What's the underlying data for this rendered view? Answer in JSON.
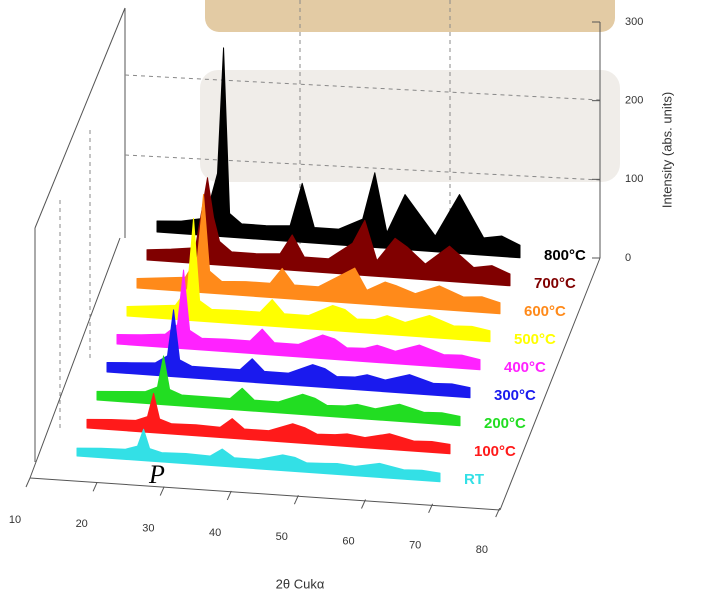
{
  "chart_data": {
    "type": "waterfall",
    "x_label": "2θ Cukα",
    "z_label": "Intensity (abs. units)",
    "annotation": "P",
    "x": [
      20,
      24,
      28,
      30,
      31,
      32,
      34,
      38,
      42,
      44,
      46,
      50,
      54,
      56,
      58,
      61,
      63,
      66,
      70,
      74,
      77,
      80
    ],
    "xticks": [
      10,
      20,
      30,
      40,
      50,
      60,
      70,
      80
    ],
    "zlim": [
      0,
      300
    ],
    "zticks": [
      0,
      100,
      200,
      300
    ],
    "series": [
      {
        "name": "RT",
        "color": "#33e0e6",
        "values": [
          10,
          12,
          13,
          18,
          40,
          16,
          12,
          13,
          12,
          22,
          12,
          12,
          20,
          18,
          12,
          13,
          14,
          12,
          18,
          12,
          13,
          11
        ]
      },
      {
        "name": "100°C",
        "color": "#ff1a1a",
        "values": [
          11,
          13,
          14,
          20,
          50,
          18,
          13,
          14,
          13,
          25,
          13,
          13,
          24,
          20,
          13,
          14,
          16,
          13,
          20,
          13,
          14,
          12
        ]
      },
      {
        "name": "200°C",
        "color": "#22dd22",
        "values": [
          11,
          13,
          15,
          22,
          62,
          20,
          14,
          14,
          14,
          28,
          14,
          14,
          26,
          22,
          14,
          15,
          18,
          14,
          22,
          14,
          15,
          12
        ]
      },
      {
        "name": "300°C",
        "color": "#1a1aee",
        "values": [
          12,
          14,
          16,
          26,
          85,
          22,
          15,
          15,
          15,
          30,
          15,
          15,
          28,
          24,
          15,
          16,
          20,
          15,
          24,
          15,
          16,
          13
        ]
      },
      {
        "name": "400°C",
        "color": "#ff22ff",
        "values": [
          12,
          14,
          17,
          30,
          100,
          24,
          15,
          16,
          16,
          32,
          16,
          16,
          30,
          26,
          16,
          17,
          22,
          16,
          26,
          16,
          17,
          13
        ]
      },
      {
        "name": "500°C",
        "color": "#ffff00",
        "values": [
          12,
          15,
          18,
          40,
          130,
          26,
          16,
          17,
          17,
          34,
          17,
          17,
          32,
          28,
          17,
          18,
          24,
          17,
          28,
          17,
          18,
          14
        ]
      },
      {
        "name": "600°C",
        "color": "#ff8a1a",
        "values": [
          12,
          15,
          18,
          45,
          125,
          28,
          16,
          18,
          18,
          38,
          18,
          18,
          36,
          45,
          18,
          30,
          26,
          18,
          30,
          18,
          20,
          14
        ]
      },
      {
        "name": "700°C",
        "color": "#800000",
        "values": [
          13,
          16,
          20,
          110,
          60,
          30,
          18,
          18,
          20,
          45,
          18,
          18,
          40,
          70,
          20,
          50,
          40,
          20,
          45,
          20,
          24,
          15
        ]
      },
      {
        "name": "800°C",
        "color": "#000000",
        "values": [
          14,
          16,
          22,
          80,
          240,
          30,
          18,
          18,
          20,
          75,
          20,
          20,
          35,
          95,
          20,
          70,
          50,
          20,
          75,
          22,
          26,
          16
        ]
      }
    ]
  }
}
